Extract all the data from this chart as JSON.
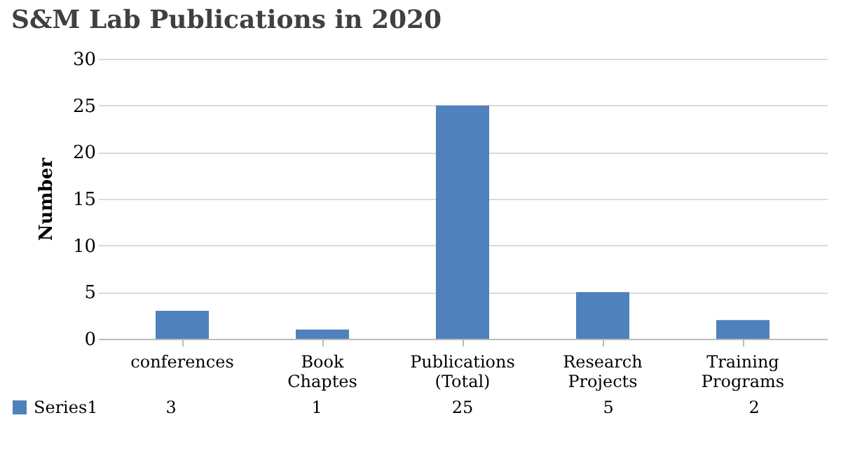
{
  "chart_data": {
    "type": "bar",
    "title": "S&M Lab Publications in 2020",
    "ylabel": "Number",
    "categories": [
      "conferences",
      "Book Chaptes",
      "Publications (Total)",
      "Research Projects",
      "Training Programs"
    ],
    "series": [
      {
        "name": "Series1",
        "color": "#4f81bd",
        "values": [
          3,
          1,
          25,
          5,
          2
        ]
      }
    ],
    "ylim": [
      0,
      30
    ],
    "yticks": [
      0,
      5,
      10,
      15,
      20,
      25,
      30
    ],
    "grid": "y",
    "legend": "bottom left",
    "data_labels": true
  }
}
